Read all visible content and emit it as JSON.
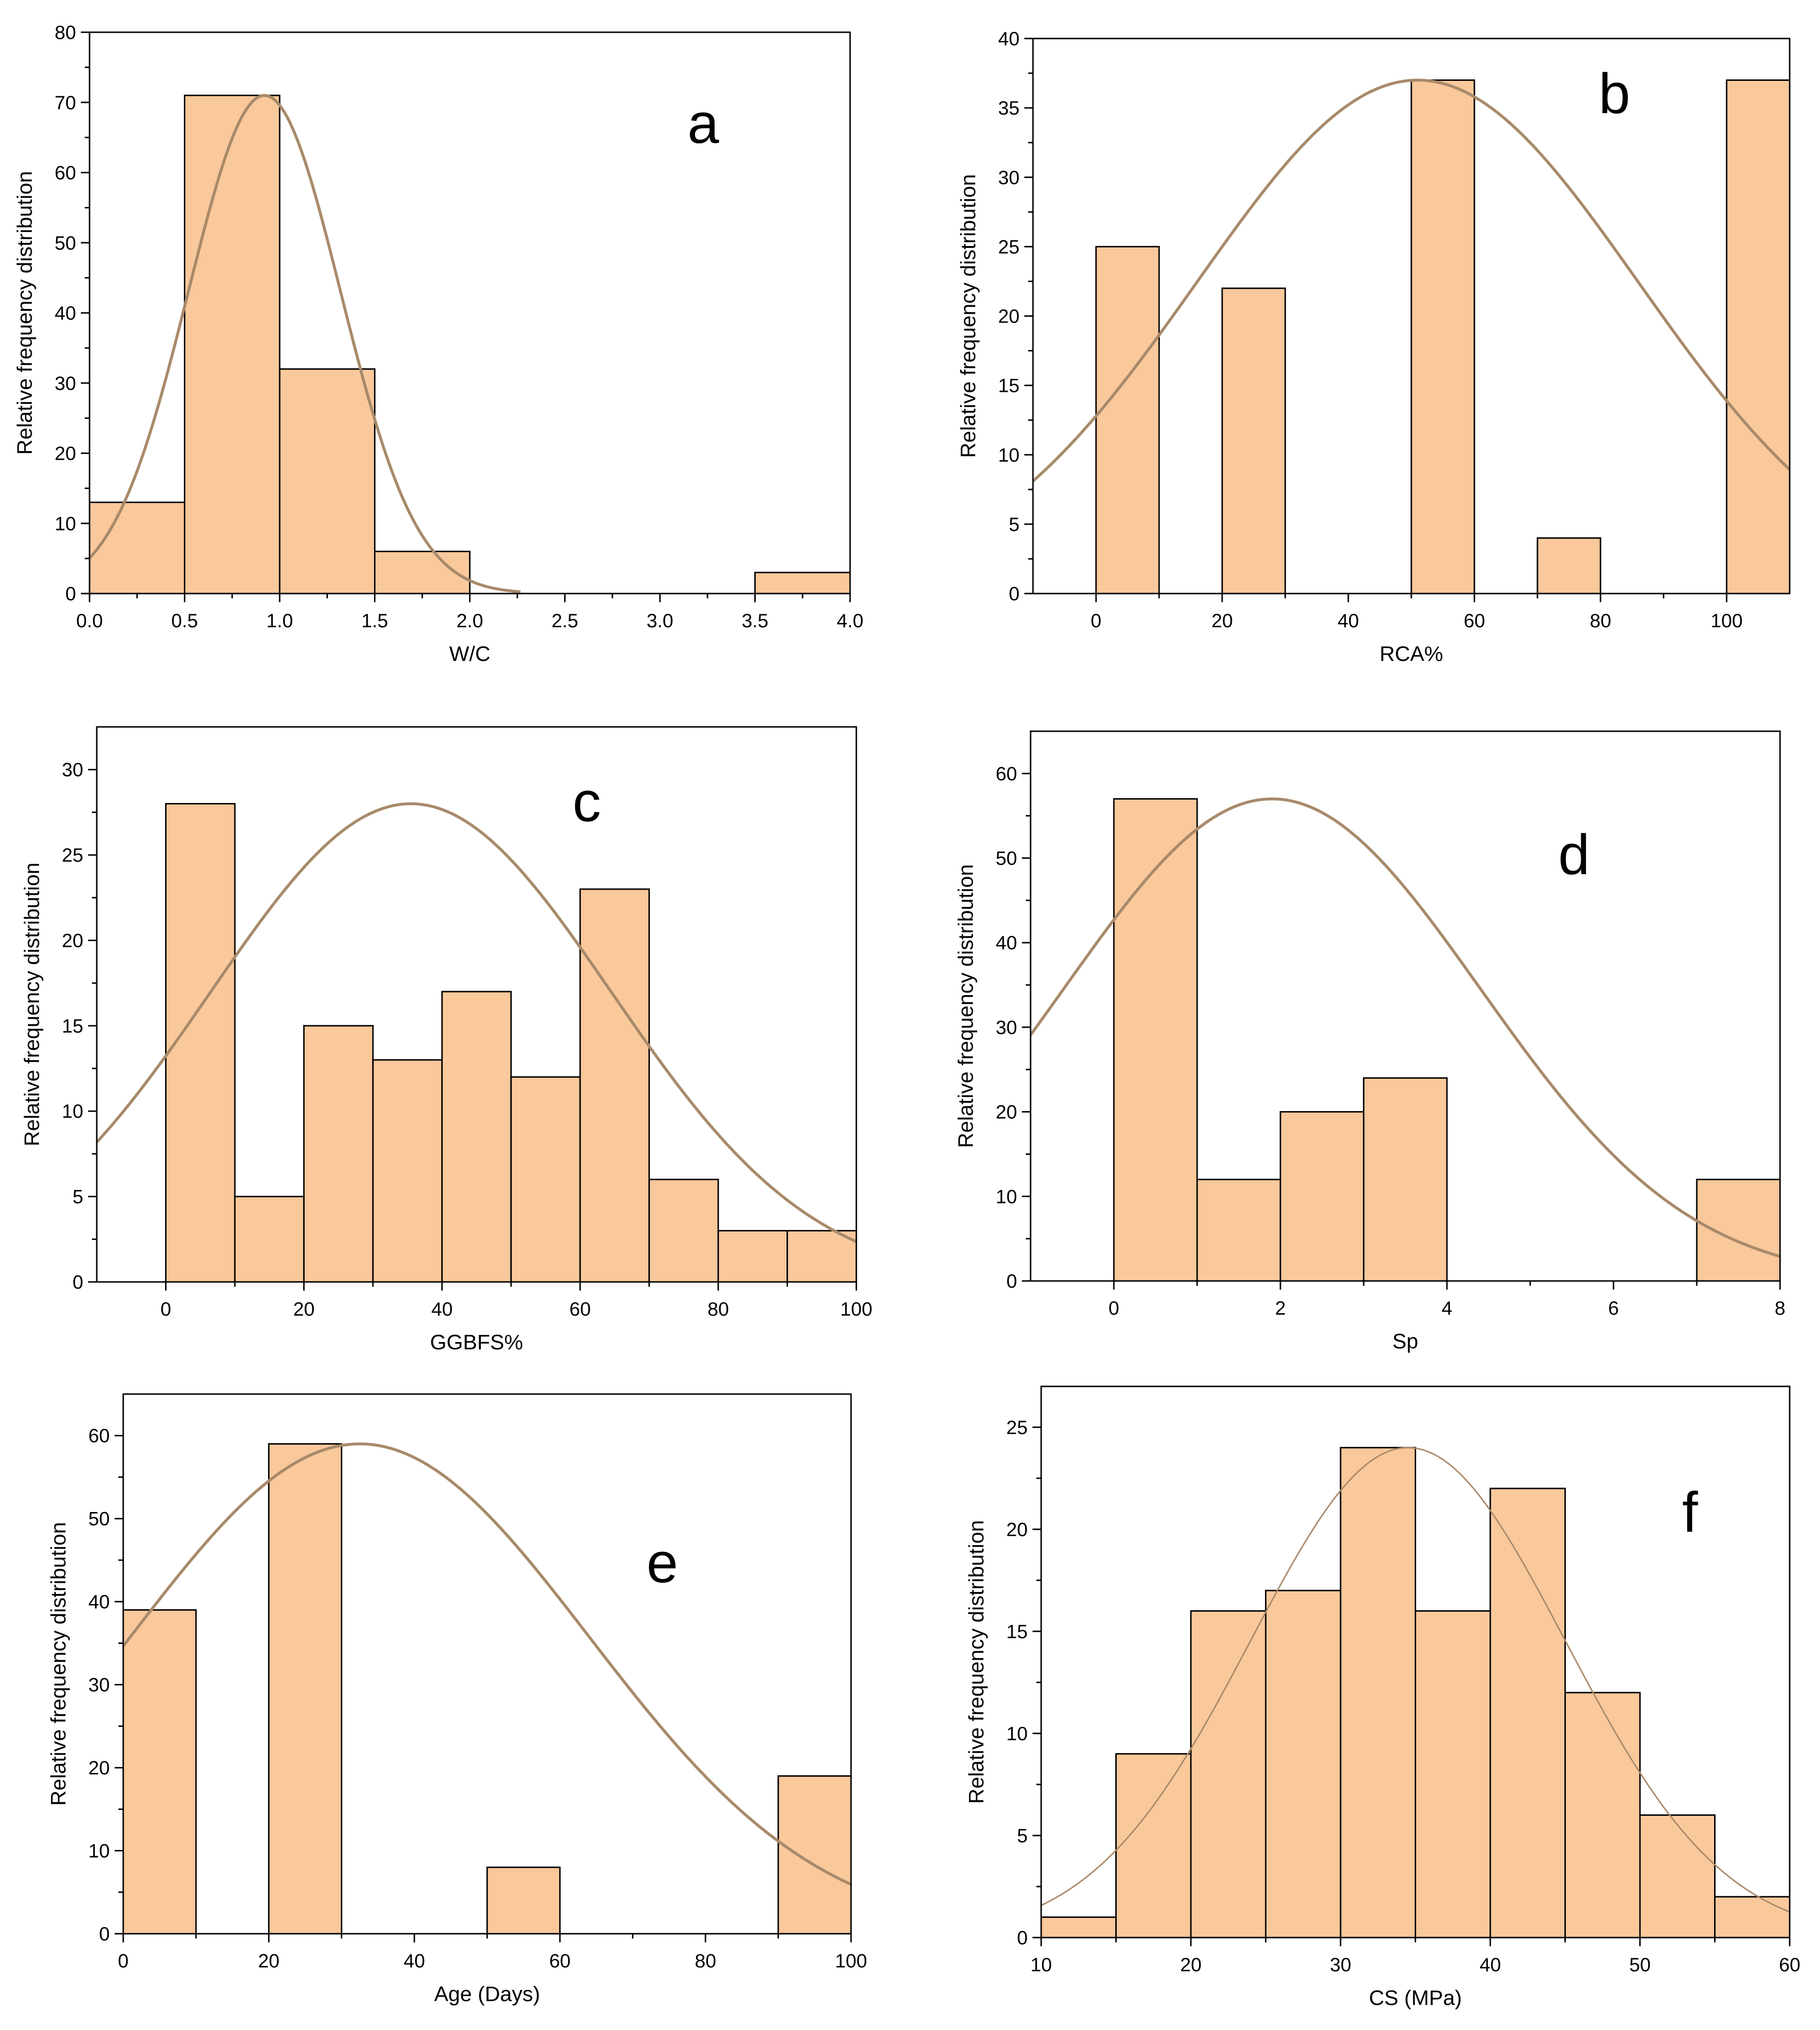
{
  "figure": {
    "title": ""
  },
  "style": {
    "bar_fill": "#F9C89B",
    "bar_edge": "#000000",
    "curve": "#A88A6A",
    "frame": "#000000"
  },
  "chart_data": [
    {
      "panel": "a",
      "type": "bar",
      "xlabel": "W/C",
      "ylabel": "Relative frequency distribution",
      "xlim": [
        0,
        4
      ],
      "ylim": [
        0,
        80
      ],
      "xticks": [
        0,
        0.5,
        1,
        1.5,
        2,
        2.5,
        3,
        3.5,
        4
      ],
      "xtick_labels": [
        "0.0",
        "0.5",
        "1.0",
        "1.5",
        "2.0",
        "2.5",
        "3.0",
        "3.5",
        "4.0"
      ],
      "yticks": [
        0,
        10,
        20,
        30,
        40,
        50,
        60,
        70,
        80
      ],
      "ytick_labels": [
        "0",
        "10",
        "20",
        "30",
        "40",
        "50",
        "60",
        "70",
        "80"
      ],
      "bins": [
        [
          0,
          0.5
        ],
        [
          0.5,
          1
        ],
        [
          1,
          1.5
        ],
        [
          1.5,
          2
        ],
        [
          3.5,
          4
        ]
      ],
      "values": [
        13,
        71,
        32,
        6,
        3
      ],
      "fit": {
        "type": "normal",
        "peak": 71,
        "mean": 0.92,
        "sd": 0.4
      }
    },
    {
      "panel": "b",
      "type": "bar",
      "xlabel": "RCA%",
      "ylabel": "Relative frequency distribution",
      "xlim": [
        -10,
        110
      ],
      "ylim": [
        0,
        40
      ],
      "xticks": [
        0,
        20,
        40,
        60,
        80,
        100
      ],
      "xtick_labels": [
        "0",
        "20",
        "40",
        "60",
        "80",
        "100"
      ],
      "yticks": [
        0,
        5,
        10,
        15,
        20,
        25,
        30,
        35,
        40
      ],
      "ytick_labels": [
        "0",
        "5",
        "10",
        "15",
        "20",
        "25",
        "30",
        "35",
        "40"
      ],
      "bins": [
        [
          0,
          10
        ],
        [
          20,
          30
        ],
        [
          50,
          60
        ],
        [
          70,
          80
        ],
        [
          100,
          110
        ]
      ],
      "values": [
        25,
        22,
        37,
        4,
        37
      ],
      "fit": {
        "type": "normal",
        "peak": 37,
        "mean": 51,
        "sd": 35
      }
    },
    {
      "panel": "c",
      "type": "bar",
      "xlabel": "GGBFS%",
      "ylabel": "Relative frequency distribution",
      "xlim": [
        -10,
        100
      ],
      "ylim": [
        0,
        32.5
      ],
      "xticks": [
        0,
        20,
        40,
        60,
        80,
        100
      ],
      "xtick_labels": [
        "0",
        "20",
        "40",
        "60",
        "80",
        "100"
      ],
      "yticks": [
        0,
        5,
        10,
        15,
        20,
        25,
        30
      ],
      "ytick_labels": [
        "0",
        "5",
        "10",
        "15",
        "20",
        "25",
        "30"
      ],
      "bins": [
        [
          0,
          10
        ],
        [
          10,
          20
        ],
        [
          20,
          30
        ],
        [
          30,
          40
        ],
        [
          40,
          50
        ],
        [
          50,
          60
        ],
        [
          60,
          70
        ],
        [
          70,
          80
        ],
        [
          80,
          90
        ],
        [
          90,
          100
        ]
      ],
      "values": [
        28,
        5,
        15,
        13,
        17,
        12,
        23,
        6,
        3,
        3
      ],
      "fit": {
        "type": "normal",
        "peak": 28,
        "mean": 35.5,
        "sd": 29
      }
    },
    {
      "panel": "d",
      "type": "bar",
      "xlabel": "Sp",
      "ylabel": "Relative frequency distribution",
      "xlim": [
        -1,
        8
      ],
      "ylim": [
        0,
        65
      ],
      "xticks": [
        0,
        2,
        4,
        6,
        8
      ],
      "xtick_labels": [
        "0",
        "2",
        "4",
        "6",
        "8"
      ],
      "yticks": [
        0,
        10,
        20,
        30,
        40,
        50,
        60
      ],
      "ytick_labels": [
        "0",
        "10",
        "20",
        "30",
        "40",
        "50",
        "60"
      ],
      "bins": [
        [
          0,
          1
        ],
        [
          1,
          2
        ],
        [
          2,
          3
        ],
        [
          3,
          4
        ],
        [
          7,
          8
        ]
      ],
      "values": [
        57,
        12,
        20,
        24,
        12
      ],
      "fit": {
        "type": "normal",
        "peak": 57,
        "mean": 1.9,
        "sd": 2.5
      }
    },
    {
      "panel": "e",
      "type": "bar",
      "xlabel": "Age (Days)",
      "ylabel": "Relative frequency distribution",
      "xlim": [
        0,
        100
      ],
      "ylim": [
        0,
        65
      ],
      "xticks": [
        0,
        20,
        40,
        60,
        80,
        100
      ],
      "xtick_labels": [
        "0",
        "20",
        "40",
        "60",
        "80",
        "100"
      ],
      "yticks": [
        0,
        10,
        20,
        30,
        40,
        50,
        60
      ],
      "ytick_labels": [
        "0",
        "10",
        "20",
        "30",
        "40",
        "50",
        "60"
      ],
      "bins": [
        [
          0,
          10
        ],
        [
          20,
          30
        ],
        [
          50,
          60
        ],
        [
          90,
          100
        ]
      ],
      "values": [
        39,
        59,
        8,
        19
      ],
      "fit": {
        "type": "normal",
        "peak": 59,
        "mean": 32.5,
        "sd": 31.5
      }
    },
    {
      "panel": "f",
      "type": "bar",
      "xlabel": "CS  (MPa)",
      "ylabel": "Relative frequency distribution",
      "xlim": [
        10,
        60
      ],
      "ylim": [
        0,
        27
      ],
      "xticks": [
        10,
        20,
        30,
        40,
        50,
        60
      ],
      "xtick_labels": [
        "10",
        "20",
        "30",
        "40",
        "50",
        "60"
      ],
      "yticks": [
        0,
        5,
        10,
        15,
        20,
        25
      ],
      "ytick_labels": [
        "0",
        "5",
        "10",
        "15",
        "20",
        "25"
      ],
      "bins": [
        [
          10,
          15
        ],
        [
          15,
          20
        ],
        [
          20,
          25
        ],
        [
          25,
          30
        ],
        [
          30,
          35
        ],
        [
          35,
          40
        ],
        [
          40,
          45
        ],
        [
          45,
          50
        ],
        [
          50,
          55
        ],
        [
          55,
          60
        ]
      ],
      "values": [
        1,
        9,
        16,
        17,
        24,
        16,
        22,
        12,
        6,
        2
      ],
      "fit": {
        "type": "normal",
        "peak": 24,
        "mean": 34.5,
        "sd": 10.5
      }
    }
  ]
}
